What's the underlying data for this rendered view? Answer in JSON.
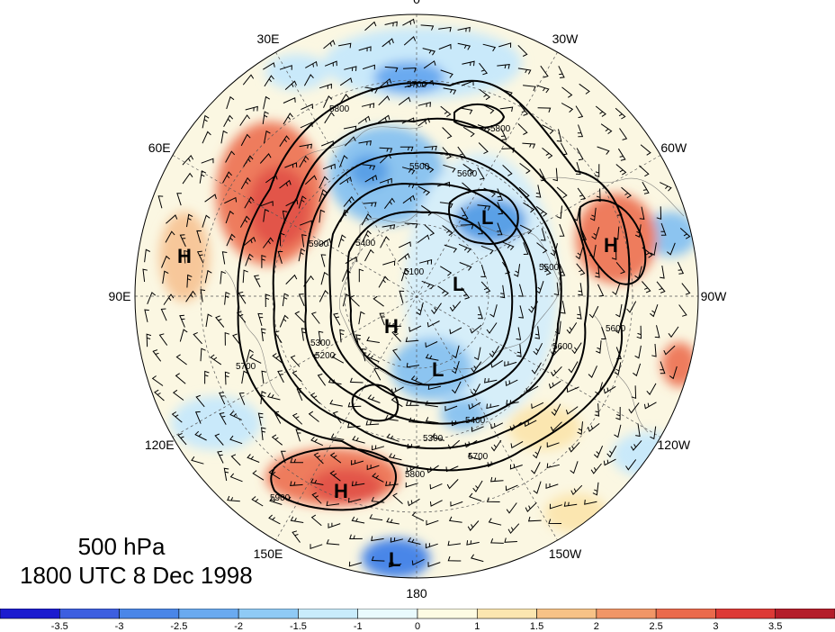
{
  "map": {
    "projection": "north polar stereographic",
    "fields": "500 hPa geopotential height contours with height anomaly shading and wind barbs",
    "longitude_labels": [
      {
        "lon": 0,
        "text": "0"
      },
      {
        "lon": 30,
        "text": "30W"
      },
      {
        "lon": 60,
        "text": "60W"
      },
      {
        "lon": 90,
        "text": "90W"
      },
      {
        "lon": 120,
        "text": "120W"
      },
      {
        "lon": 150,
        "text": "150W"
      },
      {
        "lon": 180,
        "text": "180"
      },
      {
        "lon": 210,
        "text": "150E"
      },
      {
        "lon": 240,
        "text": "120E"
      },
      {
        "lon": 270,
        "text": "90E"
      },
      {
        "lon": 300,
        "text": "60E"
      },
      {
        "lon": 330,
        "text": "30E"
      }
    ],
    "pressure_centers": [
      "L",
      "L",
      "L",
      "L",
      "H",
      "H",
      "H",
      "H"
    ],
    "contour_labels": [
      "5700",
      "5800",
      "5600",
      "5500",
      "5400",
      "5300",
      "5200",
      "5100",
      "5900",
      "5800",
      "5700",
      "5600",
      "5500",
      "5400",
      "5300",
      "5800",
      "5900",
      "5700",
      "5600"
    ],
    "colors": {
      "ring_outer": "#1a1a1a",
      "neg_strong": "#5aa0e6",
      "neg_mid": "#8cc4f0",
      "neg_weak": "#c9e9fa",
      "pos_weak": "#fdf3d0",
      "pos_mid": "#f7c79a",
      "pos_strong": "#ee7b5d",
      "pos_max": "#e2554a"
    }
  },
  "caption": {
    "level": "500 hPa",
    "datetime": "1800 UTC 8 Dec 1998"
  },
  "colorbar": {
    "colors": [
      "#1c1ccf",
      "#3d5fe0",
      "#4a86e8",
      "#6aaaf0",
      "#8fcaf5",
      "#c9ecfb",
      "#e9fafd",
      "#fdfbe3",
      "#fbe6b0",
      "#f7c287",
      "#f19667",
      "#ea6a4c",
      "#dd3a36",
      "#b41d2a"
    ],
    "labels": [
      "-3.5",
      "-3",
      "-2.5",
      "-2",
      "-1.5",
      "-1",
      "0",
      "1",
      "1.5",
      "2",
      "2.5",
      "3",
      "3.5"
    ]
  }
}
